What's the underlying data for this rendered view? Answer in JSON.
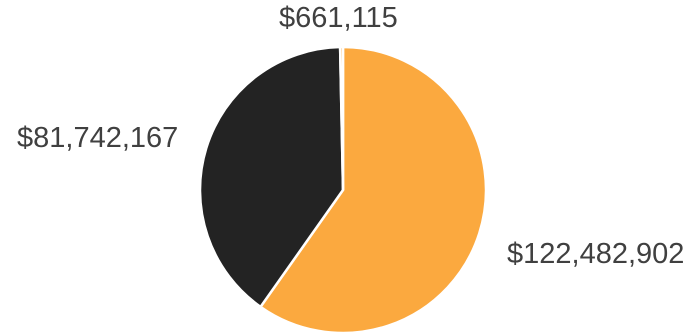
{
  "chart_data": {
    "type": "pie",
    "title": "",
    "slices": [
      {
        "label": "$122,482,902",
        "value": 122482902,
        "color": "#FBA93F"
      },
      {
        "label": "$81,742,167",
        "value": 81742167,
        "color": "#232323"
      },
      {
        "label": "$661,115",
        "value": 661115,
        "color": "#FBA93F"
      }
    ],
    "legend": "none",
    "start": "top",
    "direction": "clockwise"
  }
}
